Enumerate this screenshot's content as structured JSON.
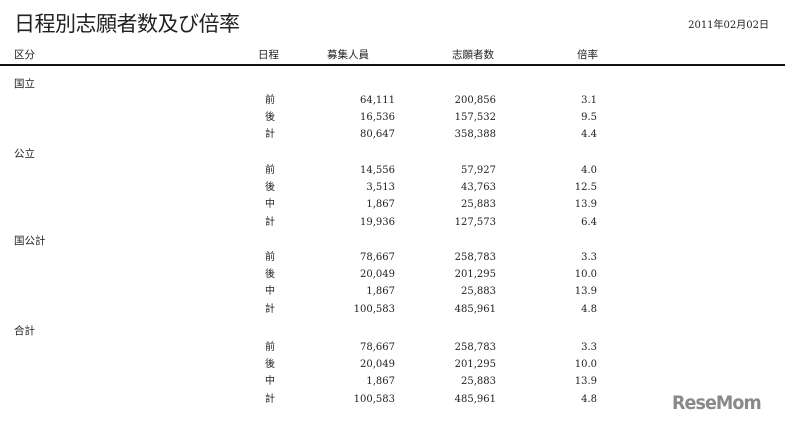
{
  "title": "日程別志願者数及び倍率",
  "date": "2011年02月02日",
  "headers": {
    "category": "区分",
    "schedule": "日程",
    "capacity": "募集人員",
    "applicants": "志願者数",
    "ratio": "倍率"
  },
  "groups": [
    {
      "name": "国立",
      "rows": [
        {
          "schedule": "前",
          "capacity": "64,111",
          "applicants": "200,856",
          "ratio": "3.1"
        },
        {
          "schedule": "後",
          "capacity": "16,536",
          "applicants": "157,532",
          "ratio": "9.5"
        },
        {
          "schedule": "計",
          "capacity": "80,647",
          "applicants": "358,388",
          "ratio": "4.4"
        }
      ]
    },
    {
      "name": "公立",
      "rows": [
        {
          "schedule": "前",
          "capacity": "14,556",
          "applicants": "57,927",
          "ratio": "4.0"
        },
        {
          "schedule": "後",
          "capacity": "3,513",
          "applicants": "43,763",
          "ratio": "12.5"
        },
        {
          "schedule": "中",
          "capacity": "1,867",
          "applicants": "25,883",
          "ratio": "13.9"
        },
        {
          "schedule": "計",
          "capacity": "19,936",
          "applicants": "127,573",
          "ratio": "6.4"
        }
      ]
    },
    {
      "name": "国公計",
      "rows": [
        {
          "schedule": "前",
          "capacity": "78,667",
          "applicants": "258,783",
          "ratio": "3.3"
        },
        {
          "schedule": "後",
          "capacity": "20,049",
          "applicants": "201,295",
          "ratio": "10.0"
        },
        {
          "schedule": "中",
          "capacity": "1,867",
          "applicants": "25,883",
          "ratio": "13.9"
        },
        {
          "schedule": "計",
          "capacity": "100,583",
          "applicants": "485,961",
          "ratio": "4.8"
        }
      ]
    },
    {
      "name": "合計",
      "rows": [
        {
          "schedule": "前",
          "capacity": "78,667",
          "applicants": "258,783",
          "ratio": "3.3"
        },
        {
          "schedule": "後",
          "capacity": "20,049",
          "applicants": "201,295",
          "ratio": "10.0"
        },
        {
          "schedule": "中",
          "capacity": "1,867",
          "applicants": "25,883",
          "ratio": "13.9"
        },
        {
          "schedule": "計",
          "capacity": "100,583",
          "applicants": "485,961",
          "ratio": "4.8"
        }
      ]
    }
  ],
  "watermark": "ReseMom"
}
